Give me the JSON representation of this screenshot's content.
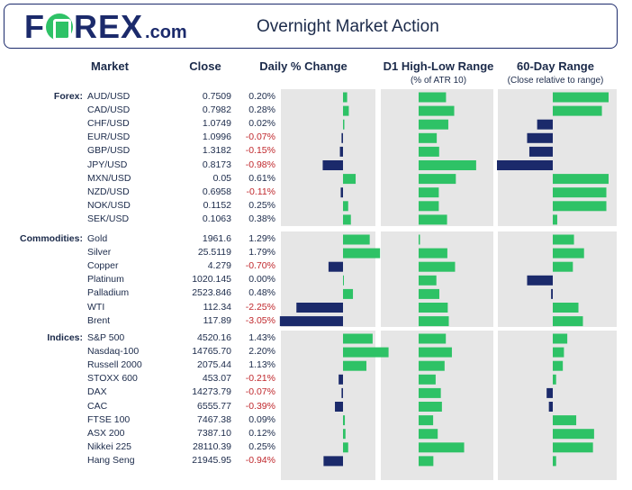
{
  "header": {
    "logo_text_1": "F",
    "logo_text_2": "REX",
    "logo_suffix": ".com",
    "title": "Overnight Market Action"
  },
  "columns": {
    "market": "Market",
    "close": "Close",
    "daily": "Daily % Change",
    "d1": "D1 High-Low Range",
    "d1_sub": "(% of ATR 10)",
    "sixty": "60-Day Range",
    "sixty_sub": "(Close relative to range)"
  },
  "colors": {
    "positive": "#2ec266",
    "negative": "#1b2a6b",
    "negative_text": "#c0282d",
    "panel": "#e6e6e6"
  },
  "chart_data": {
    "type": "table",
    "sections": [
      {
        "label": "Forex:",
        "rows": [
          {
            "market": "AUD/USD",
            "close": "0.7509",
            "daily": "0.20%",
            "daily_value": 0.2,
            "d1": "74.2%",
            "d1_value": 74.2,
            "sixty_value": 1.0
          },
          {
            "market": "CAD/USD",
            "close": "0.7982",
            "daily": "0.28%",
            "daily_value": 0.28,
            "d1": "96.4%",
            "d1_value": 96.4,
            "sixty_value": 0.88
          },
          {
            "market": "CHF/USD",
            "close": "1.0749",
            "daily": "0.02%",
            "daily_value": 0.02,
            "d1": "80.4%",
            "d1_value": 80.4,
            "sixty_value": -0.28
          },
          {
            "market": "EUR/USD",
            "close": "1.0996",
            "daily": "-0.07%",
            "daily_value": -0.07,
            "d1": "49.1%",
            "d1_value": 49.1,
            "sixty_value": -0.46
          },
          {
            "market": "GBP/USD",
            "close": "1.3182",
            "daily": "-0.15%",
            "daily_value": -0.15,
            "d1": "55.6%",
            "d1_value": 55.6,
            "sixty_value": -0.42
          },
          {
            "market": "JPY/USD",
            "close": "0.8173",
            "daily": "-0.98%",
            "daily_value": -0.98,
            "d1": "155.8%",
            "d1_value": 155.8,
            "sixty_value": -1.0
          },
          {
            "market": "MXN/USD",
            "close": "0.05",
            "daily": "0.61%",
            "daily_value": 0.61,
            "d1": "100.8%",
            "d1_value": 100.8,
            "sixty_value": 1.0
          },
          {
            "market": "NZD/USD",
            "close": "0.6958",
            "daily": "-0.11%",
            "daily_value": -0.11,
            "d1": "54.6%",
            "d1_value": 54.6,
            "sixty_value": 0.96
          },
          {
            "market": "NOK/USD",
            "close": "0.1152",
            "daily": "0.25%",
            "daily_value": 0.25,
            "d1": "54.6%",
            "d1_value": 54.6,
            "sixty_value": 0.96
          },
          {
            "market": "SEK/USD",
            "close": "0.1063",
            "daily": "0.38%",
            "daily_value": 0.38,
            "d1": "77.0%",
            "d1_value": 77.0,
            "sixty_value": 0.08
          }
        ]
      },
      {
        "label": "Commodities:",
        "rows": [
          {
            "market": "Gold",
            "close": "1961.6",
            "daily": "1.29%",
            "daily_value": 1.29,
            "d1": "2.1%",
            "d1_value": 2.1,
            "sixty_value": 0.38
          },
          {
            "market": "Silver",
            "close": "25.5119",
            "daily": "1.79%",
            "daily_value": 1.79,
            "d1": "77.8%",
            "d1_value": 77.8,
            "sixty_value": 0.56
          },
          {
            "market": "Copper",
            "close": "4.279",
            "daily": "-0.70%",
            "daily_value": -0.7,
            "d1": "98.7%",
            "d1_value": 98.7,
            "sixty_value": 0.36
          },
          {
            "market": "Platinum",
            "close": "1020.145",
            "daily": "0.00%",
            "daily_value": 0.0,
            "d1": "48.1%",
            "d1_value": 48.1,
            "sixty_value": -0.46
          },
          {
            "market": "Palladium",
            "close": "2523.846",
            "daily": "0.48%",
            "daily_value": 0.48,
            "d1": "56.1%",
            "d1_value": 56.1,
            "sixty_value": -0.03
          },
          {
            "market": "WTI",
            "close": "112.34",
            "daily": "-2.25%",
            "daily_value": -2.25,
            "d1": "78.9%",
            "d1_value": 78.9,
            "sixty_value": 0.46
          },
          {
            "market": "Brent",
            "close": "117.89",
            "daily": "-3.05%",
            "daily_value": -3.05,
            "d1": "81.7%",
            "d1_value": 81.7,
            "sixty_value": 0.54
          }
        ]
      },
      {
        "label": "Indices:",
        "rows": [
          {
            "market": "S&P 500",
            "close": "4520.16",
            "daily": "1.43%",
            "daily_value": 1.43,
            "d1": "73.7%",
            "d1_value": 73.7,
            "sixty_value": 0.26
          },
          {
            "market": "Nasdaq-100",
            "close": "14765.70",
            "daily": "2.20%",
            "daily_value": 2.2,
            "d1": "90.1%",
            "d1_value": 90.1,
            "sixty_value": 0.2
          },
          {
            "market": "Russell 2000",
            "close": "2075.44",
            "daily": "1.13%",
            "daily_value": 1.13,
            "d1": "70.3%",
            "d1_value": 70.3,
            "sixty_value": 0.18
          },
          {
            "market": "STOXX 600",
            "close": "453.07",
            "daily": "-0.21%",
            "daily_value": -0.21,
            "d1": "46.1%",
            "d1_value": 46.1,
            "sixty_value": 0.06
          },
          {
            "market": "DAX",
            "close": "14273.79",
            "daily": "-0.07%",
            "daily_value": -0.07,
            "d1": "60.1%",
            "d1_value": 60.1,
            "sixty_value": -0.11
          },
          {
            "market": "CAC",
            "close": "6555.77",
            "daily": "-0.39%",
            "daily_value": -0.39,
            "d1": "63.1%",
            "d1_value": 63.1,
            "sixty_value": -0.07
          },
          {
            "market": "FTSE 100",
            "close": "7467.38",
            "daily": "0.09%",
            "daily_value": 0.09,
            "d1": "39.3%",
            "d1_value": 39.3,
            "sixty_value": 0.42
          },
          {
            "market": "ASX 200",
            "close": "7387.10",
            "daily": "0.12%",
            "daily_value": 0.12,
            "d1": "51.7%",
            "d1_value": 51.7,
            "sixty_value": 0.74
          },
          {
            "market": "Nikkei 225",
            "close": "28110.39",
            "daily": "0.25%",
            "daily_value": 0.25,
            "d1": "123.3%",
            "d1_value": 123.3,
            "sixty_value": 0.72
          },
          {
            "market": "Hang Seng",
            "close": "21945.95",
            "daily": "-0.94%",
            "daily_value": -0.94,
            "d1": "39.9%",
            "d1_value": 39.9,
            "sixty_value": 0.06
          }
        ]
      }
    ]
  }
}
